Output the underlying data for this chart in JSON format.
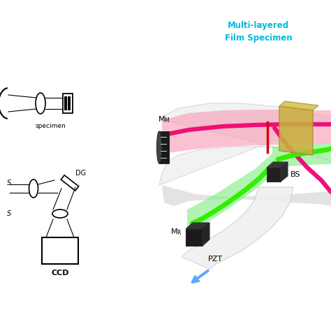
{
  "bg_color": "#ffffff",
  "title_text": "Multi-layered\nFilm Specimen",
  "title_color": "#00BBDD",
  "title_fontsize": 8.5,
  "label_MM": "M",
  "label_MM_sub": "M",
  "label_MR": "M",
  "label_MR_sub": "R",
  "label_BS": "BS",
  "label_PZT": "PZT",
  "label_specimen": "specimen",
  "label_CCD": "CCD",
  "label_DG": "DG",
  "label_S_top": "S",
  "label_S_bot": "S",
  "pink_beam_color": "#EE1177",
  "green_beam_color": "#33EE00",
  "pink_fill_color": "#F890B0",
  "green_fill_color": "#99EE88",
  "white_curved_color": "#F0F0F0",
  "specimen_color": "#C8B455",
  "mirror_body_color": "#1a1a1a",
  "arrow_blue_color": "#55AAFF"
}
